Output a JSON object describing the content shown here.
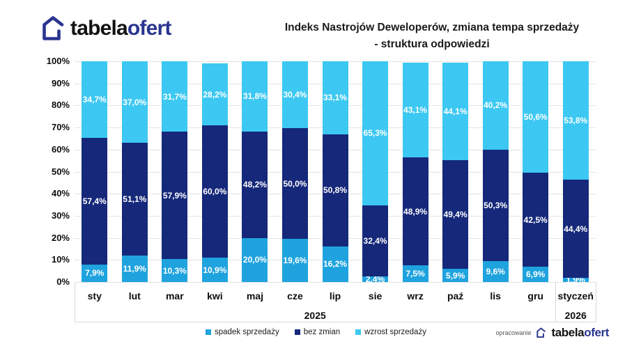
{
  "header": {
    "logo": {
      "text_black": "tabela",
      "text_blue": "ofert"
    },
    "title_line1": "Indeks Nastrojów Deweloperów, zmiana tempa sprzedaży",
    "title_line2": "- struktura odpowiedzi"
  },
  "chart_data": {
    "type": "bar",
    "stacked": true,
    "orientation": "vertical",
    "title": "Indeks Nastrojów Deweloperów, zmiana tempa sprzedaży - struktura odpowiedzi",
    "categories": [
      "sty",
      "lut",
      "mar",
      "kwi",
      "maj",
      "cze",
      "lip",
      "sie",
      "wrz",
      "paź",
      "lis",
      "gru",
      "styczeń"
    ],
    "group_labels": [
      {
        "label": "2025",
        "from": 0,
        "to": 11
      },
      {
        "label": "2026",
        "from": 12,
        "to": 12
      }
    ],
    "series": [
      {
        "name": "spadek sprzedaży",
        "color": "#1FA3DE",
        "values": [
          7.9,
          11.9,
          10.3,
          10.9,
          20.0,
          19.6,
          16.2,
          2.4,
          7.5,
          5.9,
          9.6,
          6.9,
          1.9
        ]
      },
      {
        "name": "bez zmian",
        "color": "#15287A",
        "values": [
          57.4,
          51.1,
          57.9,
          60.0,
          48.2,
          50.0,
          50.8,
          32.4,
          48.9,
          49.4,
          50.3,
          42.5,
          44.4
        ]
      },
      {
        "name": "wzrost sprzedaży",
        "color": "#3CC8F2",
        "values": [
          34.7,
          37.0,
          31.7,
          28.2,
          31.8,
          30.4,
          33.1,
          65.3,
          43.1,
          44.1,
          40.2,
          50.6,
          53.8
        ]
      }
    ],
    "ylim": [
      0,
      100
    ],
    "ytick_step": 10,
    "ytick_suffix": "%",
    "value_suffix": "%",
    "decimal_separator": ",",
    "grid": true,
    "legend_position": "bottom"
  },
  "footer": {
    "credit_label": "opracowanie",
    "logo": {
      "text_black": "tabela",
      "text_blue": "ofert"
    }
  },
  "colors": {
    "brand_navy": "#2A3590",
    "bar_navy": "#15287A",
    "bar_blue": "#1FA3DE",
    "bar_cyan": "#3CC8F2",
    "gridline": "#e4e4e4"
  }
}
